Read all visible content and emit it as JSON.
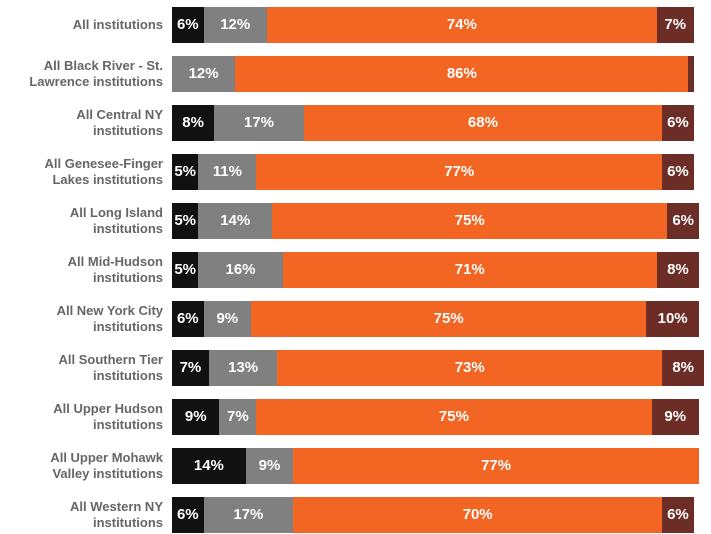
{
  "chart_data": {
    "type": "stacked-bar-horizontal",
    "categories": [
      "All institutions",
      "All Black River - St.\nLawrence institutions",
      "All Central NY\ninstitutions",
      "All Genesee-Finger\nLakes institutions",
      "All Long Island\ninstitutions",
      "All Mid-Hudson\ninstitutions",
      "All New York City\ninstitutions",
      "All Southern Tier\ninstitutions",
      "All Upper Hudson\ninstitutions",
      "All Upper Mohawk\nValley institutions",
      "All Western NY\ninstitutions"
    ],
    "xlim": [
      0,
      100
    ],
    "series": [
      {
        "color": "#111111",
        "values": [
          6,
          0,
          8,
          5,
          5,
          5,
          6,
          7,
          9,
          14,
          6
        ],
        "value_labels": [
          "6%",
          null,
          "8%",
          "5%",
          "5%",
          "5%",
          "6%",
          "7%",
          "9%",
          "14%",
          "6%"
        ]
      },
      {
        "color": "#808080",
        "values": [
          12,
          12,
          17,
          11,
          14,
          16,
          9,
          13,
          7,
          9,
          17
        ],
        "value_labels": [
          "12%",
          "12%",
          "17%",
          "11%",
          "14%",
          "16%",
          "9%",
          "13%",
          "7%",
          "9%",
          "17%"
        ]
      },
      {
        "color": "#f26522",
        "values": [
          74,
          86,
          68,
          77,
          75,
          71,
          75,
          73,
          75,
          77,
          70
        ],
        "value_labels": [
          "74%",
          "86%",
          "68%",
          "77%",
          "75%",
          "71%",
          "75%",
          "73%",
          "75%",
          "77%",
          "70%"
        ]
      },
      {
        "color": "#6b2d26",
        "values": [
          7,
          1,
          6,
          6,
          6,
          8,
          10,
          8,
          9,
          0,
          6
        ],
        "value_labels": [
          "7%",
          null,
          "6%",
          "6%",
          "6%",
          "8%",
          "10%",
          "8%",
          "9%",
          null,
          "6%"
        ]
      }
    ]
  }
}
